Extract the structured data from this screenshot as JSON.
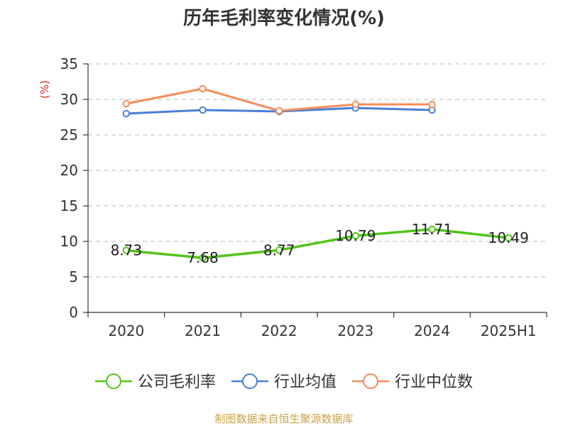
{
  "chart_data": {
    "type": "line",
    "title": "历年毛利率变化情况(%)",
    "ylabel": "(%)",
    "categories": [
      "2020",
      "2021",
      "2022",
      "2023",
      "2024",
      "2025H1"
    ],
    "ylim": [
      0,
      35
    ],
    "yticks": [
      0,
      5,
      10,
      15,
      20,
      25,
      30,
      35
    ],
    "grid": true,
    "legend_position": "bottom",
    "series": [
      {
        "name": "公司毛利率",
        "color": "#52c41a",
        "values": [
          8.73,
          7.68,
          8.77,
          10.79,
          11.71,
          10.49
        ],
        "data_labels": [
          "8.73",
          "7.68",
          "8.77",
          "10.79",
          "11.71",
          "10.49"
        ]
      },
      {
        "name": "行业均值",
        "color": "#4a7fd8",
        "values": [
          28.0,
          28.5,
          28.3,
          28.8,
          28.5,
          null
        ]
      },
      {
        "name": "行业中位数",
        "color": "#f78c5a",
        "values": [
          29.4,
          31.5,
          28.4,
          29.3,
          29.3,
          null
        ]
      }
    ],
    "source": "制图数据来自恒生聚源数据库"
  }
}
